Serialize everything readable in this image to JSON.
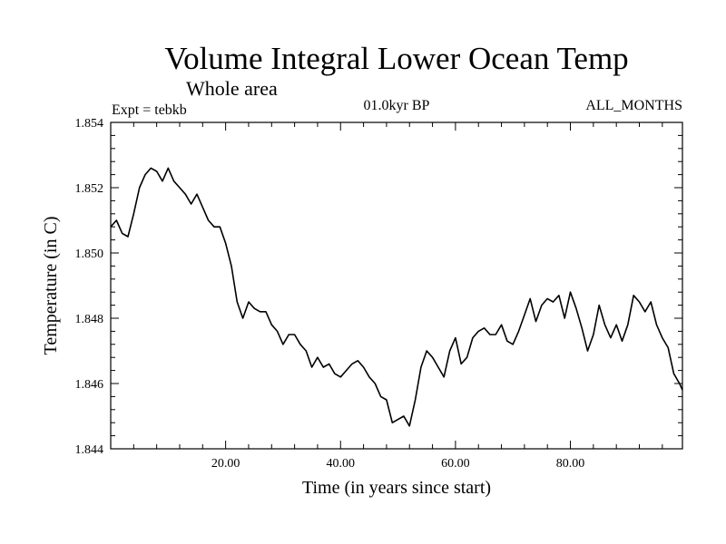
{
  "chart_data": {
    "type": "line",
    "title": "Volume Integral Lower Ocean Temp",
    "subtitle": "Whole area",
    "expt_label": "Expt = tebkb",
    "period_label": "01.0kyr BP",
    "months_label": "ALL_MONTHS",
    "xlabel": "Time (in years since start)",
    "ylabel": "Temperature (in C)",
    "xlim": [
      0,
      99.5
    ],
    "ylim": [
      1.844,
      1.854
    ],
    "x_ticks": [
      {
        "value": 20,
        "label": "20.00"
      },
      {
        "value": 40,
        "label": "40.00"
      },
      {
        "value": 60,
        "label": "60.00"
      },
      {
        "value": 80,
        "label": "80.00"
      }
    ],
    "y_ticks": [
      {
        "value": 1.844,
        "label": "1.844"
      },
      {
        "value": 1.846,
        "label": "1.846"
      },
      {
        "value": 1.848,
        "label": "1.848"
      },
      {
        "value": 1.85,
        "label": "1.850"
      },
      {
        "value": 1.852,
        "label": "1.852"
      },
      {
        "value": 1.854,
        "label": "1.854"
      }
    ],
    "series": [
      {
        "name": "Temperature",
        "x": [
          0,
          1,
          2,
          3,
          4,
          5,
          6,
          7,
          8,
          9,
          10,
          11,
          12,
          13,
          14,
          15,
          16,
          17,
          18,
          19,
          20,
          21,
          22,
          23,
          24,
          25,
          26,
          27,
          28,
          29,
          30,
          31,
          32,
          33,
          34,
          35,
          36,
          37,
          38,
          39,
          40,
          41,
          42,
          43,
          44,
          45,
          46,
          47,
          48,
          49,
          50,
          51,
          52,
          53,
          54,
          55,
          56,
          57,
          58,
          59,
          60,
          61,
          62,
          63,
          64,
          65,
          66,
          67,
          68,
          69,
          70,
          71,
          72,
          73,
          74,
          75,
          76,
          77,
          78,
          79,
          80,
          81,
          82,
          83,
          84,
          85,
          86,
          87,
          88,
          89,
          90,
          91,
          92,
          93,
          94,
          95,
          96,
          97,
          98,
          99,
          99.5
        ],
        "values": [
          1.8508,
          1.851,
          1.8506,
          1.8505,
          1.8512,
          1.852,
          1.8524,
          1.8526,
          1.8525,
          1.8522,
          1.8526,
          1.8522,
          1.852,
          1.8518,
          1.8515,
          1.8518,
          1.8514,
          1.851,
          1.8508,
          1.8508,
          1.8503,
          1.8496,
          1.8485,
          1.848,
          1.8485,
          1.8483,
          1.8482,
          1.8482,
          1.8478,
          1.8476,
          1.8472,
          1.8475,
          1.8475,
          1.8472,
          1.847,
          1.8465,
          1.8468,
          1.8465,
          1.8466,
          1.8463,
          1.8462,
          1.8464,
          1.8466,
          1.8467,
          1.8465,
          1.8462,
          1.846,
          1.8456,
          1.8455,
          1.8448,
          1.8449,
          1.845,
          1.8447,
          1.8455,
          1.8465,
          1.847,
          1.8468,
          1.8465,
          1.8462,
          1.847,
          1.8474,
          1.8466,
          1.8468,
          1.8474,
          1.8476,
          1.8477,
          1.8475,
          1.8475,
          1.8478,
          1.8473,
          1.8472,
          1.8476,
          1.8481,
          1.8486,
          1.8479,
          1.8484,
          1.8486,
          1.8485,
          1.8487,
          1.848,
          1.8488,
          1.8483,
          1.8477,
          1.847,
          1.8475,
          1.8484,
          1.8478,
          1.8474,
          1.8478,
          1.8473,
          1.8478,
          1.8487,
          1.8485,
          1.8482,
          1.8485,
          1.8478,
          1.8474,
          1.8471,
          1.8463,
          1.846,
          1.8458
        ]
      }
    ]
  }
}
